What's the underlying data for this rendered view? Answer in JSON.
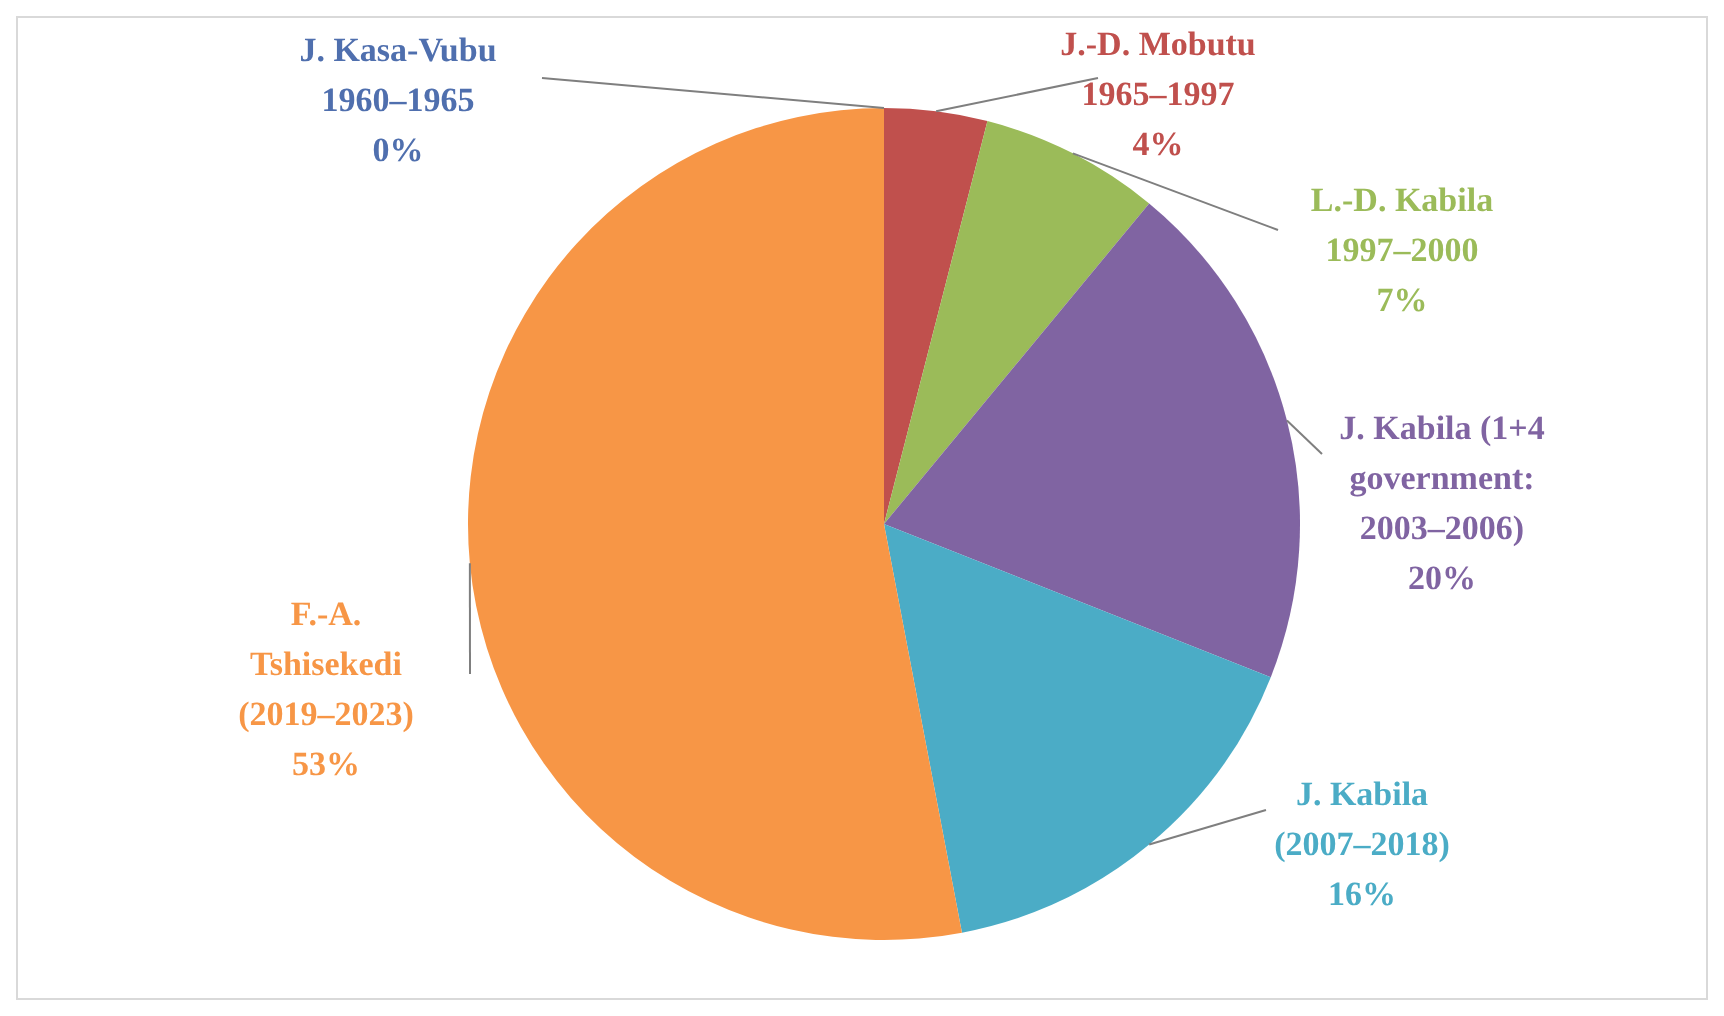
{
  "chart_data": {
    "type": "pie",
    "categories": [
      "J. Kasa-Vubu 1960–1965",
      "J.-D. Mobutu 1965–1997",
      "L.-D. Kabila 1997–2000",
      "J. Kabila (1+4 government: 2003–2006)",
      "J. Kabila (2007–2018)",
      "F.-A. Tshisekedi (2019–2023)"
    ],
    "values": [
      0,
      4,
      7,
      20,
      16,
      53
    ],
    "colors": [
      "#4f6fae",
      "#c0504d",
      "#9bbb59",
      "#8064a2",
      "#4bacc6",
      "#f79646"
    ],
    "value_labels": [
      "0%",
      "4%",
      "7%",
      "20%",
      "16%",
      "53%"
    ],
    "legend": false
  }
}
